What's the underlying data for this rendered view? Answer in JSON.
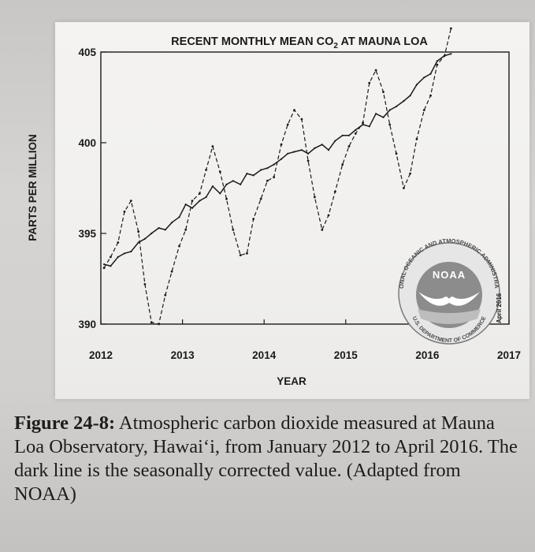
{
  "chart_data": {
    "type": "line",
    "title": "RECENT MONTHLY MEAN CO",
    "title_subscript": "2",
    "title_suffix": " AT MAUNA LOA",
    "xlabel": "YEAR",
    "ylabel": "PARTS PER MILLION",
    "x_ticks": [
      "2012",
      "2013",
      "2014",
      "2015",
      "2016",
      "2017"
    ],
    "y_ticks": [
      "390",
      "395",
      "400",
      "405"
    ],
    "xlim": [
      2012,
      2017
    ],
    "ylim": [
      390,
      405
    ],
    "grid": false,
    "date_stamp": "April 2016",
    "series": [
      {
        "style": "dashed",
        "x": [
          2012.04,
          2012.12,
          2012.21,
          2012.29,
          2012.37,
          2012.46,
          2012.54,
          2012.62,
          2012.71,
          2012.79,
          2012.87,
          2012.96,
          2013.04,
          2013.12,
          2013.21,
          2013.29,
          2013.37,
          2013.46,
          2013.54,
          2013.62,
          2013.71,
          2013.79,
          2013.87,
          2013.96,
          2014.04,
          2014.12,
          2014.21,
          2014.29,
          2014.37,
          2014.46,
          2014.54,
          2014.62,
          2014.71,
          2014.79,
          2014.87,
          2014.96,
          2015.04,
          2015.12,
          2015.21,
          2015.29,
          2015.37,
          2015.46,
          2015.54,
          2015.62,
          2015.71,
          2015.79,
          2015.87,
          2015.96,
          2016.04,
          2016.12,
          2016.21,
          2016.29
        ],
        "values": [
          393.1,
          393.7,
          394.5,
          396.2,
          396.8,
          395.1,
          392.2,
          390.1,
          390.0,
          391.6,
          392.9,
          394.3,
          395.2,
          396.8,
          397.2,
          398.5,
          399.8,
          398.4,
          396.9,
          395.2,
          393.8,
          393.9,
          395.8,
          396.9,
          397.9,
          398.1,
          399.9,
          401.0,
          401.8,
          401.3,
          399.0,
          397.0,
          395.2,
          396.0,
          397.3,
          398.8,
          399.8,
          400.5,
          401.1,
          403.3,
          404.0,
          402.8,
          401.0,
          399.4,
          397.5,
          398.3,
          400.2,
          401.8,
          402.6,
          404.3,
          404.8,
          407.4
        ]
      },
      {
        "style": "solid",
        "x": [
          2012.04,
          2012.12,
          2012.21,
          2012.29,
          2012.37,
          2012.46,
          2012.54,
          2012.62,
          2012.71,
          2012.79,
          2012.87,
          2012.96,
          2013.04,
          2013.12,
          2013.21,
          2013.29,
          2013.37,
          2013.46,
          2013.54,
          2013.62,
          2013.71,
          2013.79,
          2013.87,
          2013.96,
          2014.04,
          2014.12,
          2014.21,
          2014.29,
          2014.37,
          2014.46,
          2014.54,
          2014.62,
          2014.71,
          2014.79,
          2014.87,
          2014.96,
          2015.04,
          2015.12,
          2015.21,
          2015.29,
          2015.37,
          2015.46,
          2015.54,
          2015.62,
          2015.71,
          2015.79,
          2015.87,
          2015.96,
          2016.04,
          2016.12,
          2016.21,
          2016.29
        ],
        "values": [
          393.3,
          393.2,
          393.7,
          393.9,
          394.0,
          394.5,
          394.7,
          395.0,
          395.3,
          395.2,
          395.6,
          395.9,
          396.6,
          396.4,
          396.8,
          397.0,
          397.6,
          397.2,
          397.7,
          397.9,
          397.7,
          398.3,
          398.2,
          398.5,
          398.6,
          398.8,
          399.1,
          399.4,
          399.5,
          399.6,
          399.4,
          399.7,
          399.9,
          399.6,
          400.1,
          400.4,
          400.4,
          400.7,
          401.0,
          400.9,
          401.6,
          401.4,
          401.8,
          402.0,
          402.3,
          402.6,
          403.2,
          403.6,
          403.8,
          404.5,
          404.8,
          404.9
        ]
      }
    ]
  },
  "noaa_logo": {
    "center_text": "NOAA",
    "ring_top": "NATIONAL OCEANIC AND ATMOSPHERIC ADMINISTRATION",
    "ring_bottom": "U.S. DEPARTMENT OF COMMERCE",
    "colors": {
      "ring": "#e6e6e6",
      "disc": "#8c8c8c",
      "bird": "#ffffff"
    }
  },
  "caption": {
    "label": "Figure 24-8:",
    "text": " Atmospheric carbon dioxide measured at Mauna Loa Observatory, Hawai‘i, from January 2012 to April 2016. The dark line is the seasonally corrected value. (Adapted from NOAA)"
  },
  "colors": {
    "ink": "#1a1a1a",
    "panel": "#f2f1ef",
    "page": "#cfcdcb"
  }
}
